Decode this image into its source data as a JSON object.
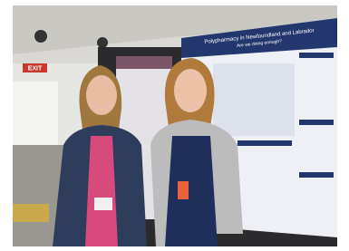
{
  "scene": {
    "exit_sign": "EXIT",
    "poster": {
      "title": "Polypharmacy in Newfoundland and Labrador",
      "subtitle": "Are we doing enough?"
    }
  }
}
